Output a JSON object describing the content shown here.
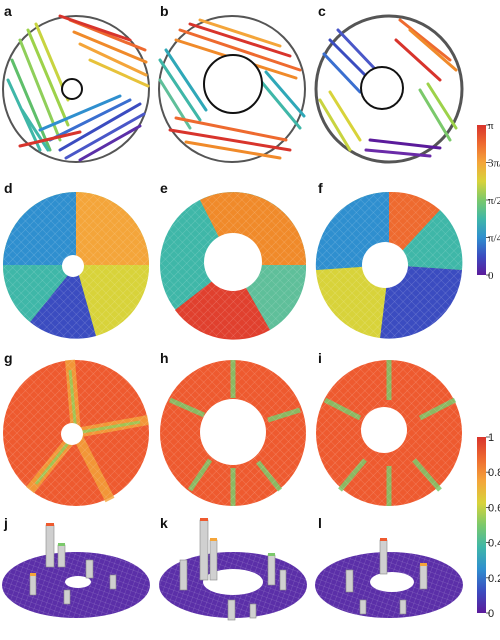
{
  "panels": [
    "a",
    "b",
    "c",
    "d",
    "e",
    "f",
    "g",
    "h",
    "i",
    "j",
    "k",
    "l"
  ],
  "colorbar_angle": {
    "ticks": [
      {
        "label": "π",
        "value": 1.0
      },
      {
        "label": "3π/4",
        "value": 0.75
      },
      {
        "label": "π/2",
        "value": 0.5
      },
      {
        "label": "π/4",
        "value": 0.25
      },
      {
        "label": "0",
        "value": 0.0
      }
    ]
  },
  "colorbar_order": {
    "ticks": [
      {
        "label": "1",
        "value": 1.0
      },
      {
        "label": "0.8",
        "value": 0.8
      },
      {
        "label": "0.6",
        "value": 0.6
      },
      {
        "label": "0.4",
        "value": 0.4
      },
      {
        "label": "0.2",
        "value": 0.2
      },
      {
        "label": "0",
        "value": 0.0
      }
    ]
  },
  "colors": {
    "colormap": [
      "#5b1b9b",
      "#3b4cc0",
      "#2f8fcf",
      "#3fb7a8",
      "#7bc96b",
      "#d8d33a",
      "#f4a53a",
      "#ee6a2f",
      "#d8342c"
    ],
    "outline": "#555555",
    "background": "#ffffff"
  }
}
